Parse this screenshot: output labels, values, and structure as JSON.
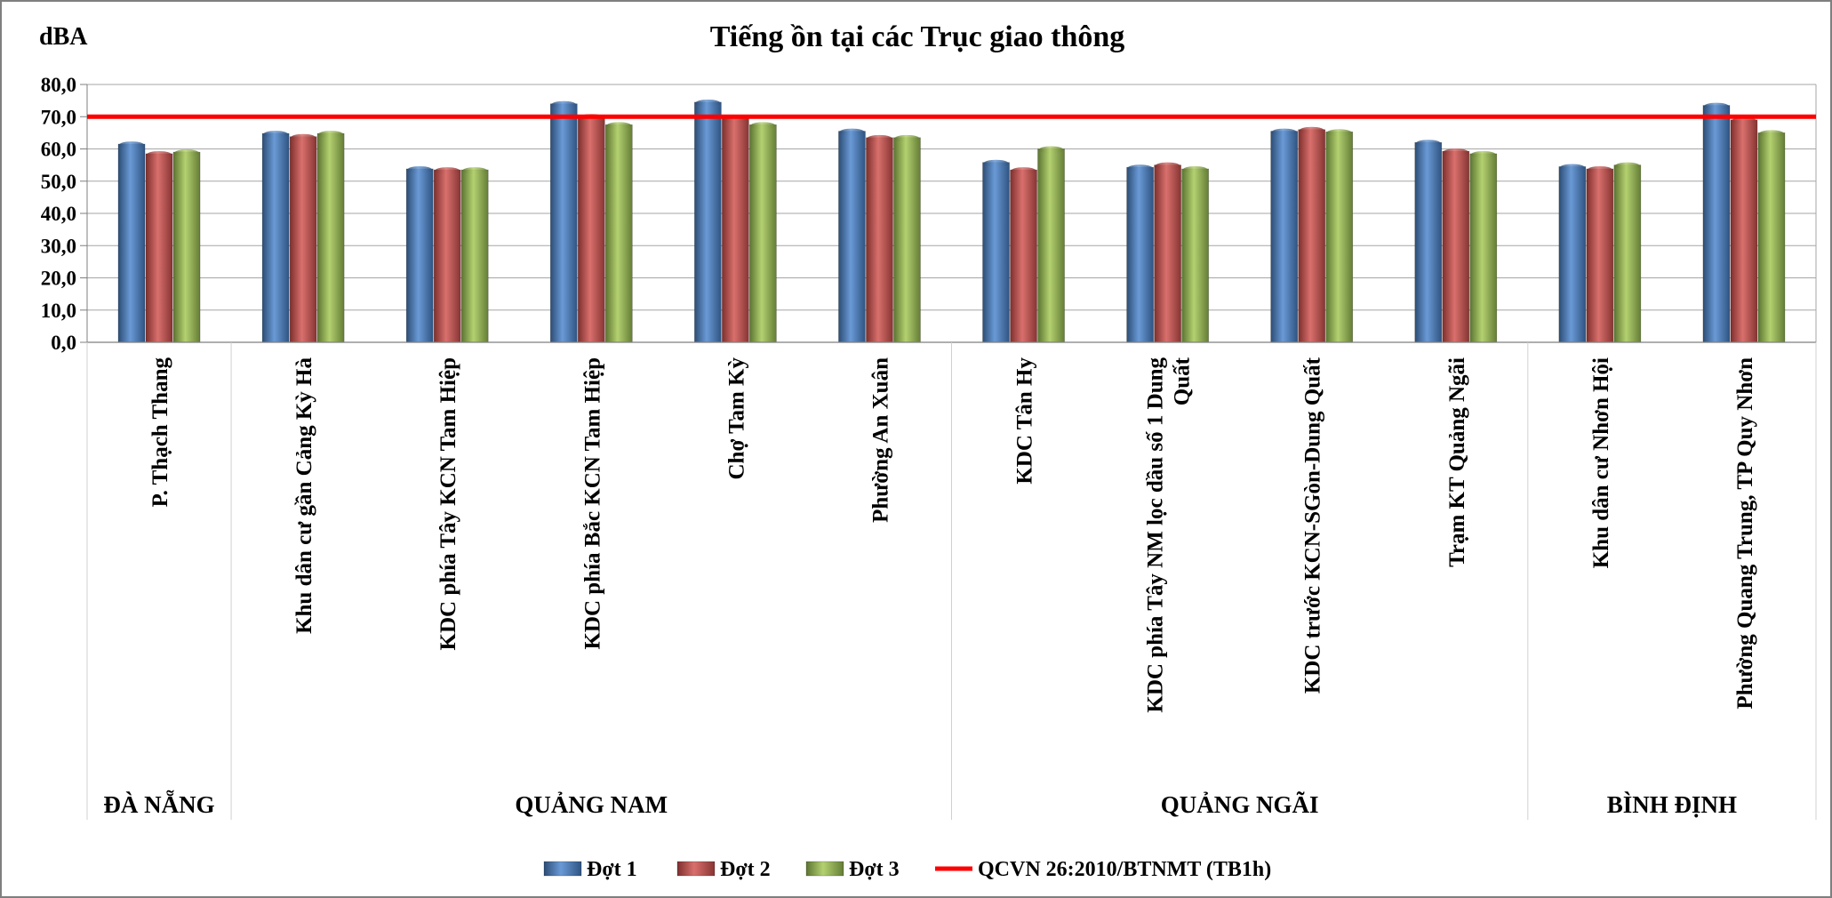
{
  "chart_data": {
    "type": "bar",
    "title": "Tiếng ồn tại các Trục giao thông",
    "ylabel": "dBA",
    "ylim": [
      0,
      80
    ],
    "yticks": [
      "0,0",
      "10,0",
      "20,0",
      "30,0",
      "40,0",
      "50,0",
      "60,0",
      "70,0",
      "80,0"
    ],
    "grid": true,
    "legend_position": "bottom",
    "categories": [
      [
        "P. Thạch  Thang"
      ],
      [
        "Khu dân cư gần Cảng Kỳ Hà"
      ],
      [
        "KDC phía Tây KCN Tam Hiệp"
      ],
      [
        "KDC phía Bắc KCN Tam Hiệp"
      ],
      [
        "Chợ Tam Kỳ"
      ],
      [
        "Phường An Xuân"
      ],
      [
        "KDC Tân Hy"
      ],
      [
        "KDC phía Tây NM lọc dầu số 1 Dung",
        "Quất"
      ],
      [
        "KDC trước KCN-SGòn-Dung Quất"
      ],
      [
        "Trạm KT Quảng Ngãi"
      ],
      [
        "Khu dân cư Nhơn Hội"
      ],
      [
        "Phường Quang Trung, TP Quy Nhơn"
      ]
    ],
    "groups": [
      {
        "name": "ĐÀ NẴNG",
        "start": 0,
        "end": 0
      },
      {
        "name": "QUẢNG NAM",
        "start": 1,
        "end": 5
      },
      {
        "name": "QUẢNG NGÃI",
        "start": 6,
        "end": 9
      },
      {
        "name": "BÌNH ĐỊNH",
        "start": 10,
        "end": 11
      }
    ],
    "series": [
      {
        "name": "Đợt 1",
        "color": "#4f81bd",
        "values": [
          61.5,
          64.8,
          53.8,
          74.0,
          74.5,
          65.5,
          55.8,
          54.3,
          65.5,
          62.0,
          54.5,
          73.5
        ]
      },
      {
        "name": "Đợt 2",
        "color": "#c0504d",
        "values": [
          58.5,
          63.8,
          53.5,
          70.0,
          69.5,
          63.5,
          53.5,
          55.0,
          66.0,
          59.3,
          53.8,
          69.0
        ]
      },
      {
        "name": "Đợt 3",
        "color": "#9bbb59",
        "values": [
          59.0,
          64.8,
          53.5,
          67.5,
          67.5,
          63.5,
          60.0,
          53.8,
          65.3,
          58.5,
          55.0,
          65.0
        ]
      }
    ],
    "reference_line": {
      "name": "QCVN 26:2010/BTNMT (TB1h)",
      "value": 70,
      "color": "#ff0000"
    }
  }
}
